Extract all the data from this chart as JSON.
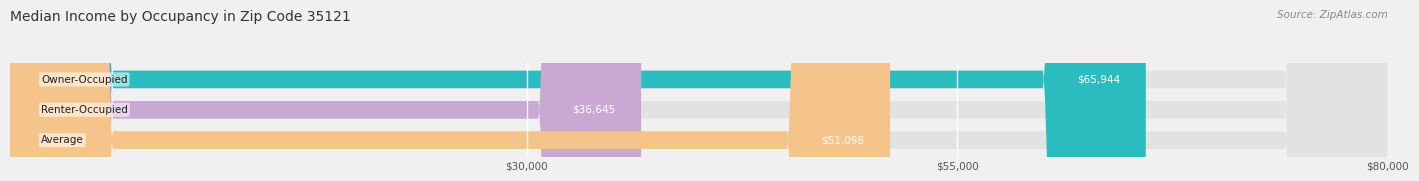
{
  "title": "Median Income by Occupancy in Zip Code 35121",
  "source": "Source: ZipAtlas.com",
  "categories": [
    "Owner-Occupied",
    "Renter-Occupied",
    "Average"
  ],
  "values": [
    65944,
    36645,
    51098
  ],
  "bar_colors": [
    "#2BBCBF",
    "#C9A8D4",
    "#F5C48A"
  ],
  "value_labels": [
    "$65,944",
    "$36,645",
    "$51,098"
  ],
  "xlim": [
    0,
    80000
  ],
  "xticks": [
    30000,
    55000,
    80000
  ],
  "xtick_labels": [
    "$30,000",
    "$55,000",
    "$80,000"
  ],
  "background_color": "#f0f0f0",
  "bar_background_color": "#e2e2e2",
  "title_fontsize": 10,
  "source_fontsize": 7.5,
  "label_fontsize": 7.5,
  "tick_fontsize": 7.5,
  "bar_height": 0.58
}
